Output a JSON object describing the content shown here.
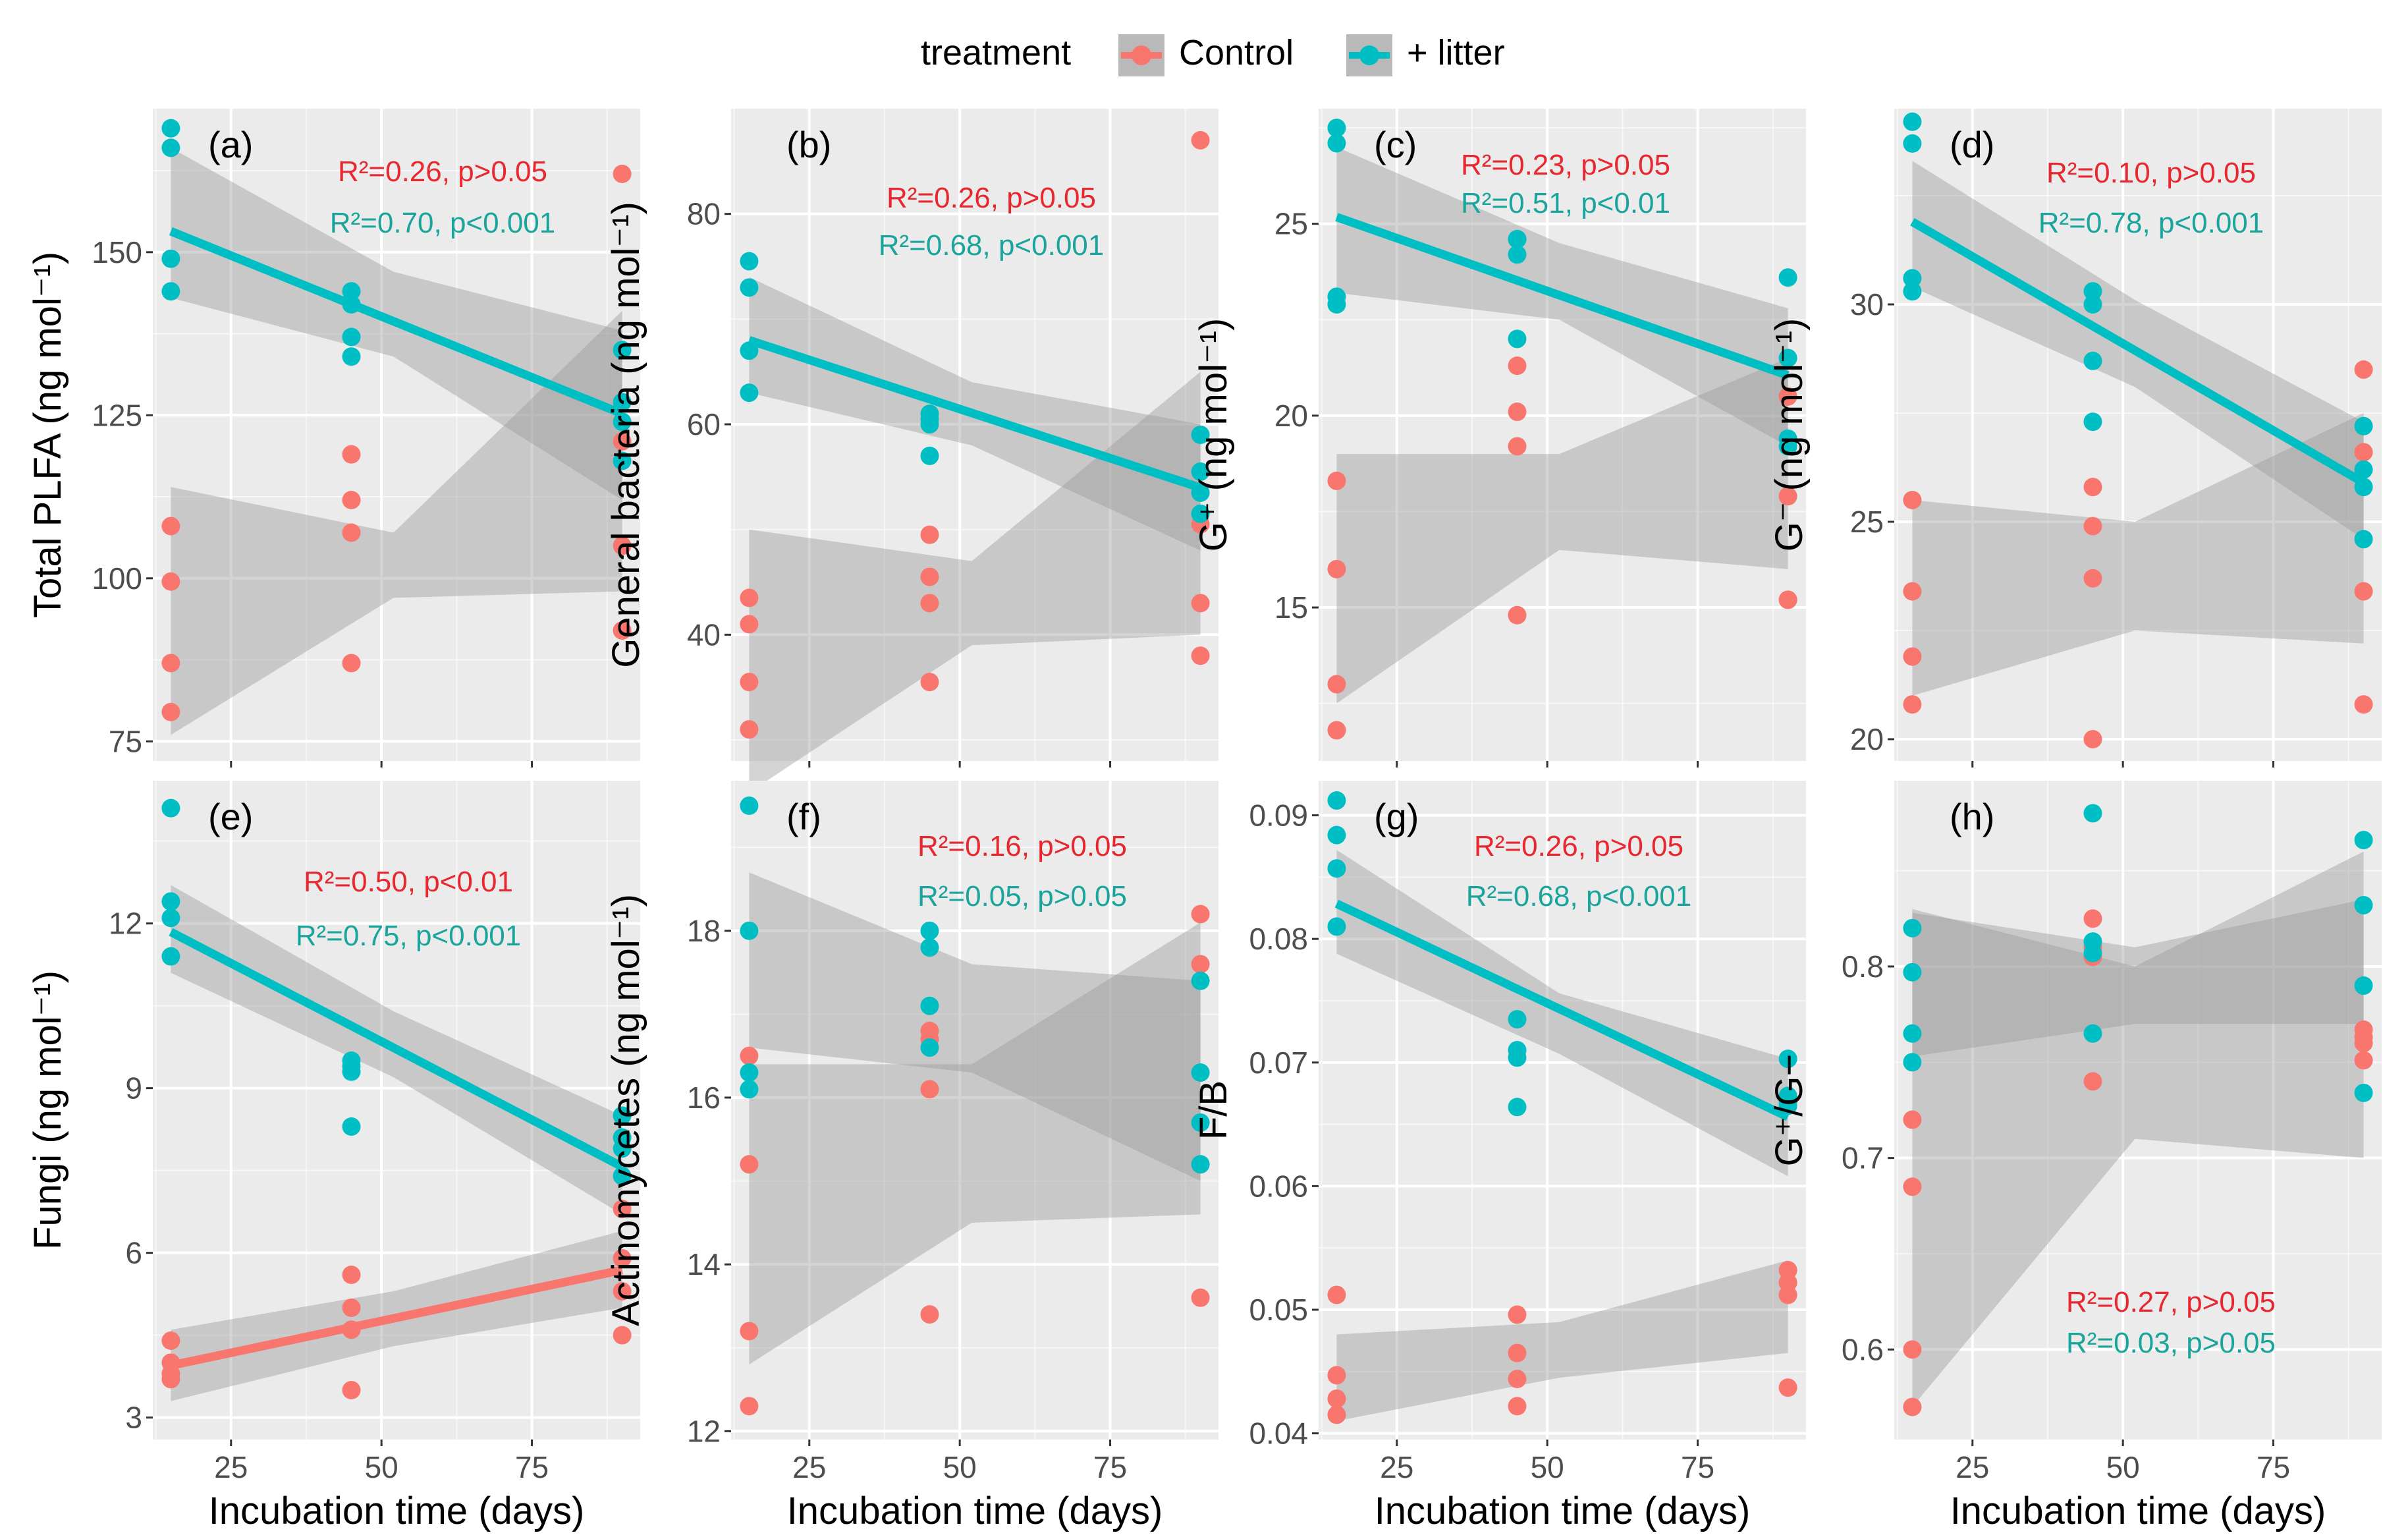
{
  "colors": {
    "control": "#f8766d",
    "litter": "#00bfc4",
    "ribbon": "#999999"
  },
  "legend": {
    "title": "treatment",
    "items": [
      "Control",
      "+ litter"
    ]
  },
  "chart_data": [
    {
      "type": "scatter",
      "label": "(a)",
      "ylabel": "Total PLFA  (ng mol⁻¹)",
      "xlabel": "",
      "ylim": [
        72,
        172
      ],
      "yticks": [
        75,
        100,
        125,
        150
      ],
      "ytick_labels": [
        "75",
        "100",
        "125",
        "150"
      ],
      "show_x_labels": false,
      "annotations": [
        "R²=0.26, p>0.05",
        "R²=0.70, p<0.001"
      ],
      "series": [
        {
          "name": "Control",
          "x": [
            15,
            15,
            15,
            15,
            45,
            45,
            45,
            45,
            90,
            90,
            90,
            90
          ],
          "y": [
            108,
            99.5,
            87,
            79.5,
            119,
            112,
            107,
            87,
            162,
            121,
            105,
            92
          ],
          "fit": {
            "show_line": false,
            "intercept": 88.0,
            "slope": 0.24,
            "ribbon": [
              [
                15,
                76,
                114
              ],
              [
                52,
                97,
                107
              ],
              [
                90,
                98,
                141
              ]
            ]
          }
        },
        {
          "name": "+ litter",
          "x": [
            15,
            15,
            15,
            15,
            45,
            45,
            45,
            45,
            90,
            90,
            90,
            90
          ],
          "y": [
            169,
            166,
            149,
            144,
            144,
            142,
            137,
            134,
            135,
            127,
            124,
            118
          ],
          "fit": {
            "show_line": true,
            "intercept": 158.8,
            "slope": -0.373,
            "ribbon": [
              [
                15,
                143,
                166
              ],
              [
                52,
                134,
                147
              ],
              [
                90,
                112,
                138
              ]
            ]
          }
        }
      ]
    },
    {
      "type": "scatter",
      "label": "(b)",
      "ylabel": "General bacteria  (ng mol⁻¹)",
      "xlabel": "",
      "ylim": [
        28,
        90
      ],
      "yticks": [
        40,
        60,
        80
      ],
      "ytick_labels": [
        "40",
        "60",
        "80"
      ],
      "show_x_labels": false,
      "annotations": [
        "R²=0.26, p>0.05",
        "R²=0.68, p<0.001"
      ],
      "series": [
        {
          "name": "Control",
          "x": [
            15,
            15,
            15,
            15,
            45,
            45,
            45,
            45,
            90,
            90,
            90,
            90
          ],
          "y": [
            43.5,
            41,
            35.5,
            31,
            49.5,
            45.5,
            43,
            35.5,
            87,
            50.5,
            43,
            38
          ],
          "fit": {
            "show_line": false,
            "intercept": 36.9,
            "slope": 0.117,
            "ribbon": [
              [
                15,
                25,
                50
              ],
              [
                52,
                39,
                47
              ],
              [
                90,
                40,
                65
              ]
            ]
          }
        },
        {
          "name": "+ litter",
          "x": [
            15,
            15,
            15,
            15,
            45,
            45,
            45,
            45,
            90,
            90,
            90,
            90
          ],
          "y": [
            75.5,
            73,
            67,
            63,
            61,
            60,
            57,
            60.5,
            59,
            55.5,
            53.5,
            51.5
          ],
          "fit": {
            "show_line": true,
            "intercept": 70.8,
            "slope": -0.187,
            "ribbon": [
              [
                15,
                63,
                74
              ],
              [
                52,
                58,
                64
              ],
              [
                90,
                48,
                60
              ]
            ]
          }
        }
      ]
    },
    {
      "type": "scatter",
      "label": "(c)",
      "ylabel": "G⁺  (ng mol⁻¹)",
      "xlabel": "",
      "ylim": [
        11,
        28
      ],
      "yticks": [
        15,
        20,
        25
      ],
      "ytick_labels": [
        "15",
        "20",
        "25"
      ],
      "show_x_labels": false,
      "annotations": [
        "R²=0.23, p>0.05",
        "R²=0.51, p<0.01"
      ],
      "series": [
        {
          "name": "Control",
          "x": [
            15,
            15,
            15,
            15,
            45,
            45,
            45,
            45,
            90,
            90,
            90,
            90
          ],
          "y": [
            18.3,
            16,
            13,
            11.8,
            21.3,
            20.1,
            19.2,
            14.8,
            20.5,
            17.9,
            15.2,
            15.2
          ],
          "fit": {
            "show_line": false,
            "intercept": 15.3,
            "slope": 0.047,
            "ribbon": [
              [
                15,
                12.5,
                19
              ],
              [
                52,
                16.5,
                19
              ],
              [
                90,
                16,
                21.5
              ]
            ]
          }
        },
        {
          "name": "+ litter",
          "x": [
            15,
            15,
            15,
            15,
            45,
            45,
            45,
            45,
            90,
            90,
            90,
            90
          ],
          "y": [
            27.5,
            27.1,
            23.1,
            22.9,
            24.6,
            24.2,
            22,
            24.6,
            23.6,
            21.5,
            19.4,
            19.2
          ],
          "fit": {
            "show_line": true,
            "intercept": 26.0,
            "slope": -0.055,
            "ribbon": [
              [
                15,
                23.2,
                27
              ],
              [
                52,
                22.5,
                24.5
              ],
              [
                90,
                19.2,
                22.8
              ]
            ]
          }
        }
      ]
    },
    {
      "type": "scatter",
      "label": "(d)",
      "ylabel": "G⁻  (ng mol⁻¹)",
      "xlabel": "",
      "ylim": [
        19.5,
        34.5
      ],
      "yticks": [
        20,
        25,
        30
      ],
      "ytick_labels": [
        "20",
        "25",
        "30"
      ],
      "show_x_labels": false,
      "annotations": [
        "R²=0.10, p>0.05",
        "R²=0.78, p<0.001"
      ],
      "series": [
        {
          "name": "Control",
          "x": [
            15,
            15,
            15,
            15,
            45,
            45,
            45,
            45,
            90,
            90,
            90,
            90
          ],
          "y": [
            25.5,
            23.4,
            21.9,
            20.8,
            25.8,
            24.9,
            23.7,
            20,
            28.5,
            26.6,
            23.4,
            20.8
          ],
          "fit": {
            "show_line": false,
            "intercept": 23.2,
            "slope": 0.017,
            "ribbon": [
              [
                15,
                21,
                25.5
              ],
              [
                52,
                22.5,
                25
              ],
              [
                90,
                22.2,
                27.5
              ]
            ]
          }
        },
        {
          "name": "+ litter",
          "x": [
            15,
            15,
            15,
            15,
            45,
            45,
            45,
            45,
            90,
            90,
            90,
            90
          ],
          "y": [
            34.2,
            33.7,
            30.6,
            30.3,
            30.3,
            30,
            28.7,
            27.3,
            27.2,
            26.2,
            25.8,
            24.6
          ],
          "fit": {
            "show_line": true,
            "intercept": 33.1,
            "slope": -0.08,
            "ribbon": [
              [
                15,
                30.4,
                33.3
              ],
              [
                52,
                28.1,
                30.1
              ],
              [
                90,
                24.6,
                27.3
              ]
            ]
          }
        }
      ]
    },
    {
      "type": "scatter",
      "label": "(e)",
      "ylabel": "Fungi  (ng mol⁻¹)",
      "xlabel": "Incubation time (days)",
      "ylim": [
        2.6,
        14.6
      ],
      "yticks": [
        3,
        6,
        9,
        12
      ],
      "ytick_labels": [
        "3",
        "6",
        "9",
        "12"
      ],
      "show_x_labels": true,
      "annotations": [
        "R²=0.50, p<0.01",
        "R²=0.75, p<0.001"
      ],
      "series": [
        {
          "name": "Control",
          "x": [
            15,
            15,
            15,
            15,
            45,
            45,
            45,
            45,
            90,
            90,
            90,
            90
          ],
          "y": [
            4.4,
            4,
            3.8,
            3.7,
            5.6,
            5,
            4.6,
            3.5,
            6.8,
            5.9,
            5.3,
            4.5
          ],
          "fit": {
            "show_line": true,
            "intercept": 3.6,
            "slope": 0.0232,
            "ribbon": [
              [
                15,
                3.3,
                4.6
              ],
              [
                52,
                4.3,
                5.3
              ],
              [
                90,
                5.0,
                6.4
              ]
            ]
          }
        },
        {
          "name": "+ litter",
          "x": [
            15,
            15,
            15,
            15,
            45,
            45,
            45,
            45,
            90,
            90,
            90,
            90
          ],
          "y": [
            14.1,
            12.4,
            12.1,
            11.4,
            9.5,
            9.4,
            8.3,
            9.3,
            8.5,
            8.1,
            7.9,
            7.4
          ],
          "fit": {
            "show_line": true,
            "intercept": 12.7,
            "slope": -0.057,
            "ribbon": [
              [
                15,
                11.1,
                12.7
              ],
              [
                52,
                9.2,
                10.4
              ],
              [
                90,
                6.7,
                8.5
              ]
            ]
          }
        }
      ]
    },
    {
      "type": "scatter",
      "label": "(f)",
      "ylabel": "Actinomycetes  (ng mol⁻¹)",
      "xlabel": "Incubation time (days)",
      "ylim": [
        11.9,
        19.8
      ],
      "yticks": [
        12,
        14,
        16,
        18
      ],
      "ytick_labels": [
        "12",
        "14",
        "16",
        "18"
      ],
      "show_x_labels": true,
      "annotations": [
        "R²=0.16, p>0.05",
        "R²=0.05, p>0.05"
      ],
      "series": [
        {
          "name": "Control",
          "x": [
            15,
            15,
            15,
            15,
            45,
            45,
            45,
            45,
            90,
            90,
            90,
            90
          ],
          "y": [
            16.5,
            15.2,
            13.2,
            12.3,
            16.8,
            16.7,
            16.1,
            13.4,
            18.2,
            17.6,
            15.2,
            13.6
          ],
          "fit": {
            "show_line": false,
            "intercept": 14.2,
            "slope": 0.02,
            "ribbon": [
              [
                15,
                12.8,
                16.4
              ],
              [
                52,
                14.5,
                16.4
              ],
              [
                90,
                14.6,
                18.1
              ]
            ]
          }
        },
        {
          "name": "+ litter",
          "x": [
            15,
            15,
            15,
            15,
            45,
            45,
            45,
            45,
            90,
            90,
            90,
            90
          ],
          "y": [
            19.5,
            18,
            16.3,
            16.1,
            18,
            17.8,
            17.1,
            16.6,
            17.4,
            16.3,
            15.7,
            15.2
          ],
          "fit": {
            "show_line": false,
            "intercept": 17.6,
            "slope": -0.01,
            "ribbon": [
              [
                15,
                16.6,
                18.7
              ],
              [
                52,
                16.3,
                17.6
              ],
              [
                90,
                15,
                17.4
              ]
            ]
          }
        }
      ]
    },
    {
      "type": "scatter",
      "label": "(g)",
      "ylabel": "F/B",
      "xlabel": "Incubation time (days)",
      "ylim": [
        0.0395,
        0.0928
      ],
      "yticks": [
        0.04,
        0.05,
        0.06,
        0.07,
        0.08,
        0.09
      ],
      "ytick_labels": [
        "0.04",
        "0.05",
        "0.06",
        "0.07",
        "0.08",
        "0.09"
      ],
      "show_x_labels": true,
      "annotations": [
        "R²=0.26, p>0.05",
        "R²=0.68, p<0.001"
      ],
      "series": [
        {
          "name": "Control",
          "x": [
            15,
            15,
            15,
            15,
            45,
            45,
            45,
            45,
            90,
            90,
            90,
            90
          ],
          "y": [
            0.0512,
            0.0447,
            0.0428,
            0.0415,
            0.0496,
            0.0465,
            0.0444,
            0.0422,
            0.0532,
            0.0522,
            0.0512,
            0.0437
          ],
          "fit": {
            "show_line": false,
            "intercept": 0.0445,
            "slope": 5e-05,
            "ribbon": [
              [
                15,
                0.041,
                0.048
              ],
              [
                52,
                0.0445,
                0.049
              ],
              [
                90,
                0.0465,
                0.054
              ]
            ]
          }
        },
        {
          "name": "+ litter",
          "x": [
            15,
            15,
            15,
            15,
            45,
            45,
            45,
            45,
            90,
            90,
            90,
            90
          ],
          "y": [
            0.0912,
            0.0884,
            0.0857,
            0.081,
            0.0735,
            0.071,
            0.0704,
            0.0664,
            0.0703,
            0.0673,
            0.0668,
            0.0665
          ],
          "fit": {
            "show_line": true,
            "intercept": 0.0863,
            "slope": -0.00023,
            "ribbon": [
              [
                15,
                0.0788,
                0.0872
              ],
              [
                52,
                0.0707,
                0.0756
              ],
              [
                90,
                0.0608,
                0.0703
              ]
            ]
          }
        }
      ]
    },
    {
      "type": "scatter",
      "label": "(h)",
      "ylabel": "G⁺/G−",
      "xlabel": "Incubation time (days)",
      "ylim": [
        0.553,
        0.897
      ],
      "yticks": [
        0.6,
        0.7,
        0.8
      ],
      "ytick_labels": [
        "0.6",
        "0.7",
        "0.8"
      ],
      "show_x_labels": true,
      "annotations": [
        "R²=0.27, p>0.05",
        "R²=0.03, p>0.05"
      ],
      "series": [
        {
          "name": "Control",
          "x": [
            15,
            15,
            15,
            15,
            45,
            45,
            45,
            45,
            90,
            90,
            90,
            90
          ],
          "y": [
            0.72,
            0.685,
            0.6,
            0.57,
            0.825,
            0.81,
            0.805,
            0.74,
            0.767,
            0.763,
            0.76,
            0.751
          ],
          "fit": {
            "show_line": false,
            "intercept": 0.67,
            "slope": 0.0012,
            "ribbon": [
              [
                15,
                0.57,
                0.83
              ],
              [
                52,
                0.71,
                0.8
              ],
              [
                90,
                0.7,
                0.86
              ]
            ]
          }
        },
        {
          "name": "+ litter",
          "x": [
            15,
            15,
            15,
            15,
            45,
            45,
            45,
            45,
            90,
            90,
            90,
            90
          ],
          "y": [
            0.82,
            0.797,
            0.765,
            0.75,
            0.88,
            0.813,
            0.807,
            0.765,
            0.866,
            0.832,
            0.79,
            0.734
          ],
          "fit": {
            "show_line": false,
            "intercept": 0.787,
            "slope": 0.0001,
            "ribbon": [
              [
                15,
                0.753,
                0.828
              ],
              [
                52,
                0.77,
                0.81
              ],
              [
                90,
                0.77,
                0.835
              ]
            ]
          }
        }
      ]
    }
  ],
  "shared_axis": {
    "xlim": [
      12,
      93
    ],
    "xticks": [
      25,
      50,
      75
    ],
    "xtick_labels": [
      "25",
      "50",
      "75"
    ]
  }
}
